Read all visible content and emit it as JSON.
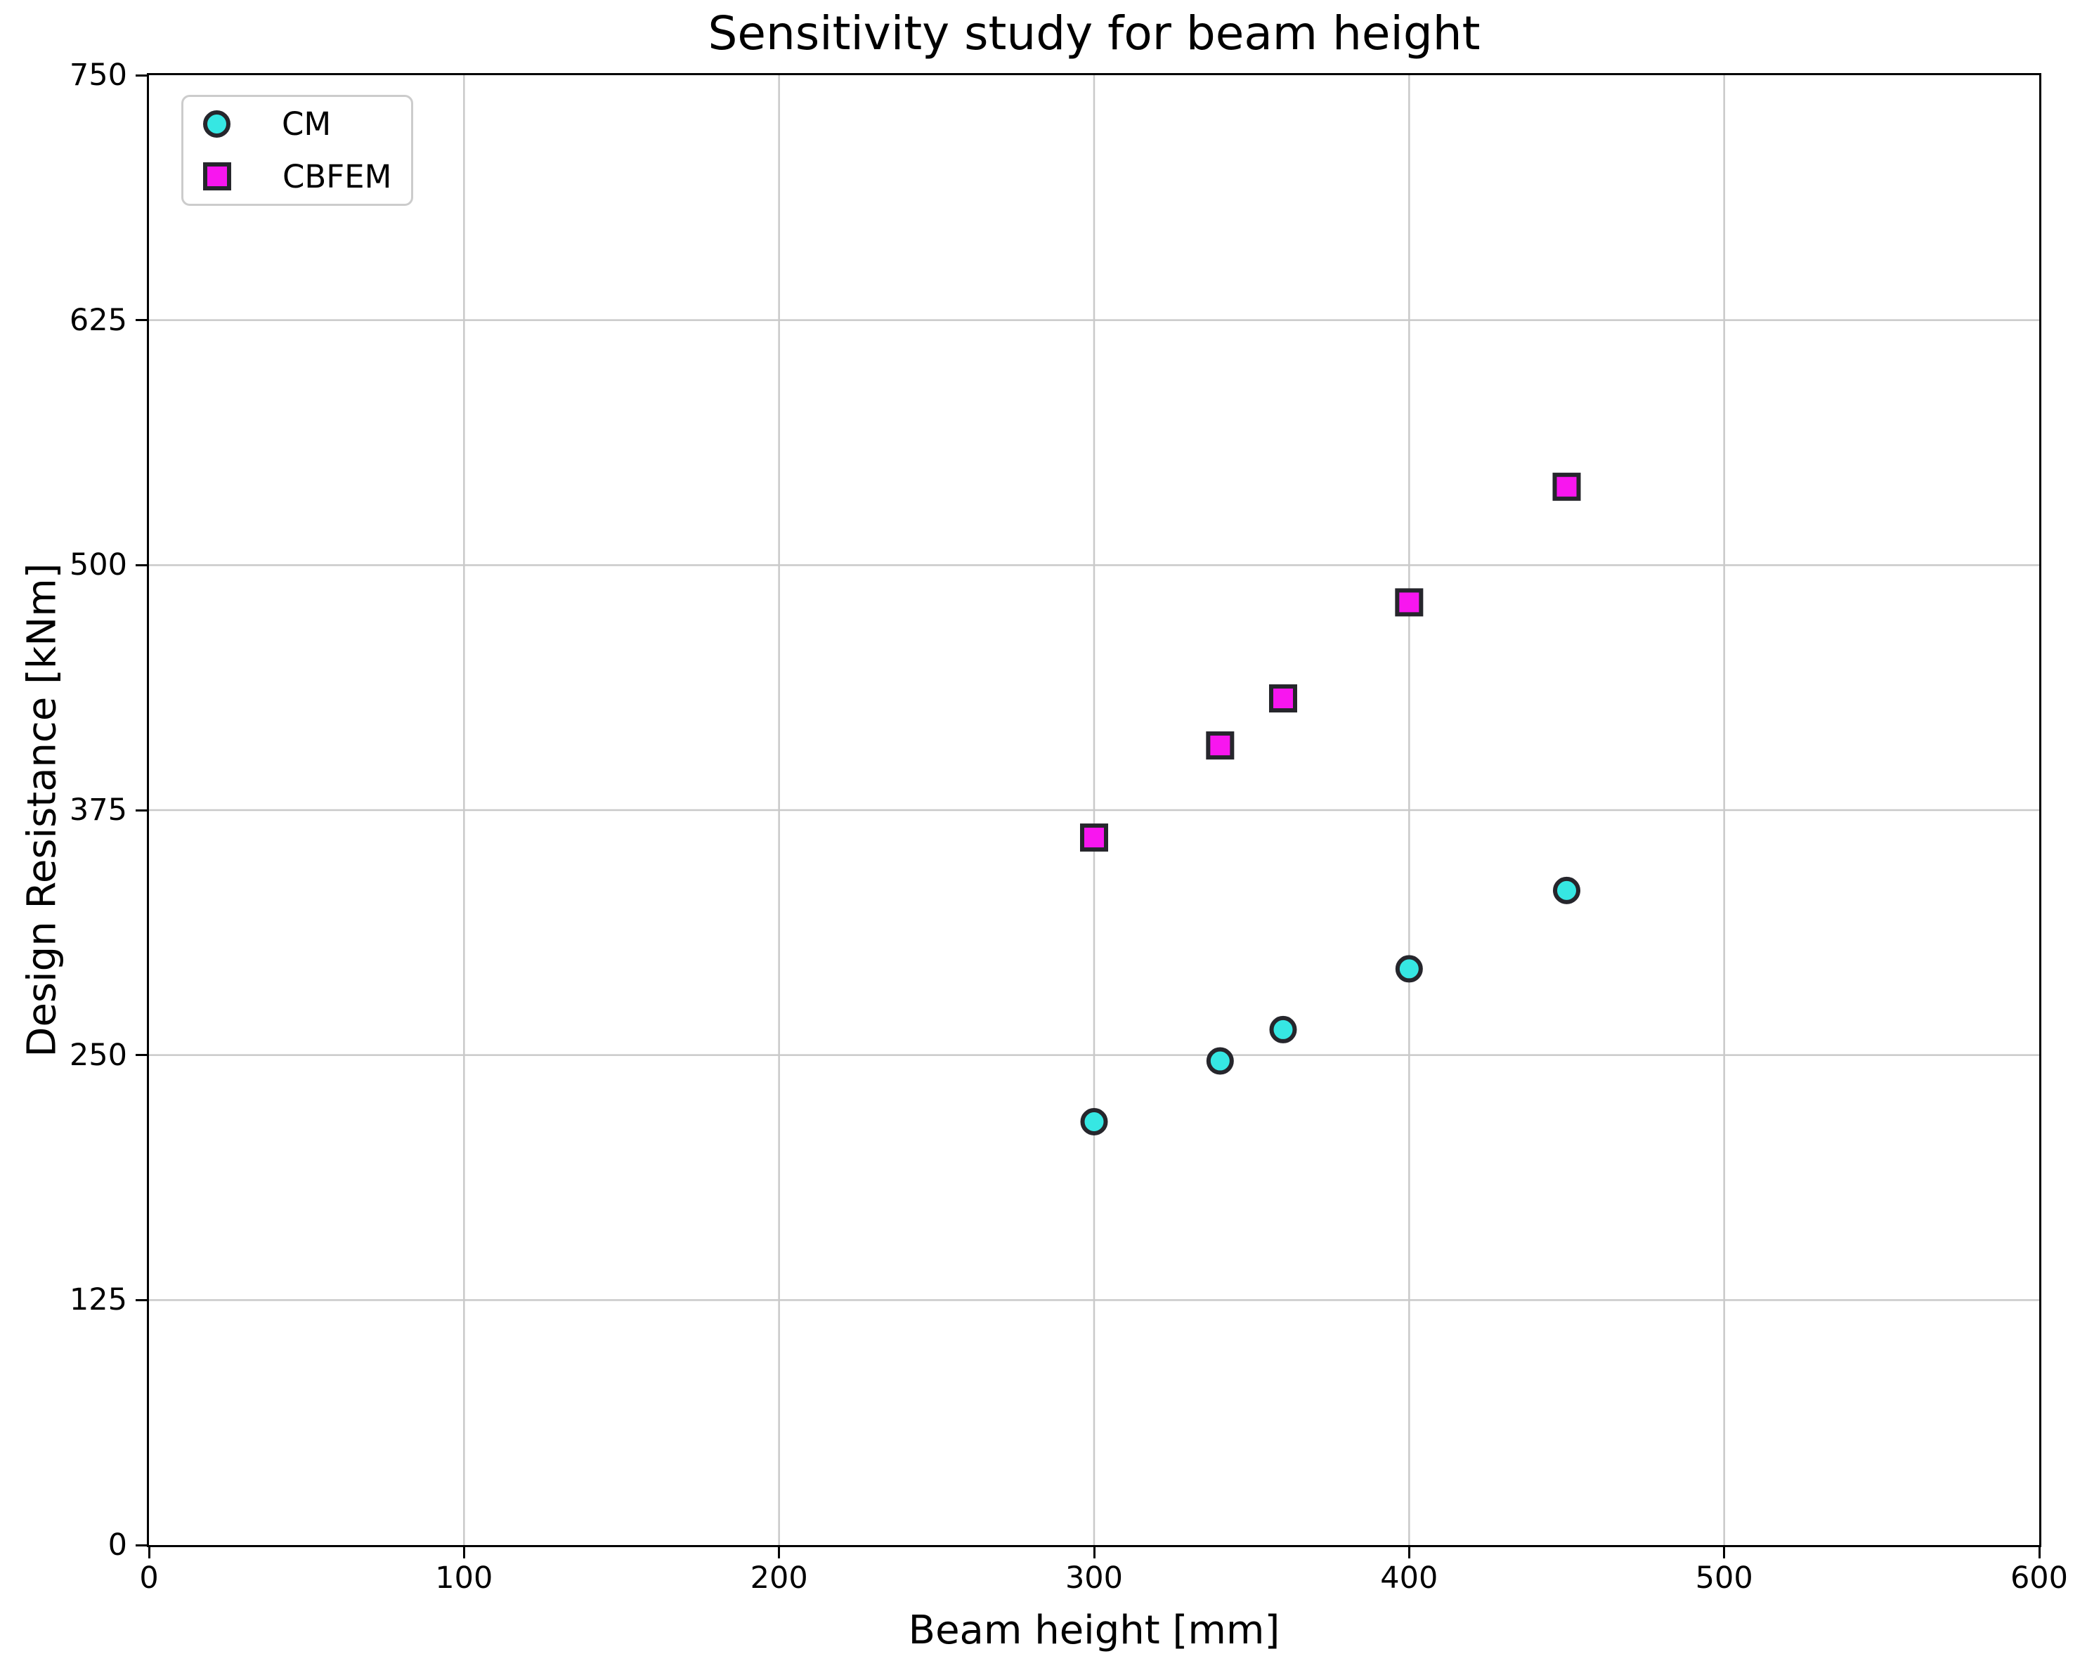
{
  "chart_data": {
    "type": "scatter",
    "title": "Sensitivity study for beam height",
    "xlabel": "Beam height [mm]",
    "ylabel": "Design Resistance [kNm]",
    "xlim": [
      0,
      600
    ],
    "ylim": [
      0,
      750
    ],
    "x_ticks": [
      0,
      100,
      200,
      300,
      400,
      500,
      600
    ],
    "y_ticks": [
      0,
      125,
      250,
      375,
      500,
      625,
      750
    ],
    "grid": true,
    "legend_position": "upper left",
    "series": [
      {
        "name": "CM",
        "marker": "circle",
        "fill_color": "#36E7E3",
        "edge_color": "#26262C",
        "points": [
          [
            300,
            216
          ],
          [
            340,
            247
          ],
          [
            360,
            263
          ],
          [
            400,
            294
          ],
          [
            450,
            334
          ]
        ]
      },
      {
        "name": "CBFEM",
        "marker": "square",
        "fill_color": "#F816EF",
        "edge_color": "#26262C",
        "points": [
          [
            300,
            361
          ],
          [
            340,
            408
          ],
          [
            360,
            432
          ],
          [
            400,
            481
          ],
          [
            450,
            540
          ]
        ]
      }
    ]
  },
  "styles": {
    "grid_color": "#C9C9C9",
    "spine_color": "#000000",
    "background_color": "#FFFFFF",
    "text_color": "#000000",
    "legend_border_color": "#CCCCCC"
  }
}
